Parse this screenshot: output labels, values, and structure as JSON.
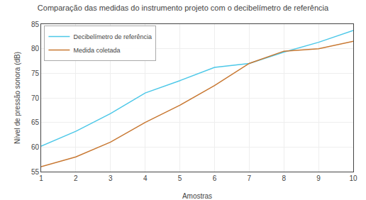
{
  "chart_data": {
    "type": "line",
    "title": "Comparação das medidas do instrumento projeto com o decibelímetro de referência",
    "xlabel": "Amostras",
    "ylabel": "Nível de pressão sonora (dB)",
    "x": [
      1,
      2,
      3,
      4,
      5,
      6,
      7,
      8,
      9,
      10
    ],
    "series": [
      {
        "name": "Decibelímetro de referência",
        "color": "#4dc8e8",
        "values": [
          60.2,
          63.2,
          66.8,
          71.0,
          73.5,
          76.2,
          77.0,
          79.3,
          81.3,
          83.7
        ]
      },
      {
        "name": "Medida coletada",
        "color": "#c87832",
        "values": [
          56.0,
          58.0,
          61.0,
          65.0,
          68.5,
          72.5,
          77.0,
          79.5,
          80.0,
          81.5
        ]
      }
    ],
    "xlim": [
      1,
      10
    ],
    "ylim": [
      55,
      85
    ],
    "xticks": [
      1,
      2,
      3,
      4,
      5,
      6,
      7,
      8,
      9,
      10
    ],
    "yticks": [
      55,
      60,
      65,
      70,
      75,
      80,
      85
    ],
    "grid": true,
    "legend": "upper left"
  }
}
